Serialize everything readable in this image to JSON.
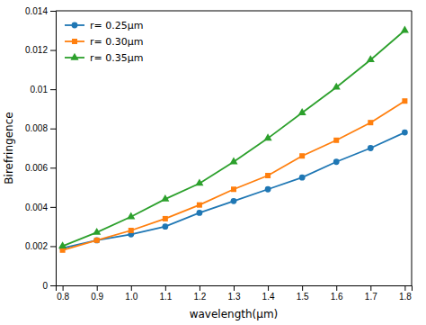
{
  "chart_data": {
    "type": "line",
    "xlabel": "wavelength(μm)",
    "ylabel": "Birefringence",
    "x": [
      0.8,
      0.9,
      1.0,
      1.1,
      1.2,
      1.3,
      1.4,
      1.5,
      1.6,
      1.7,
      1.8
    ],
    "series": [
      {
        "name": "r= 0.25μm",
        "marker": "circle",
        "values": [
          0.0019,
          0.0023,
          0.0026,
          0.003,
          0.0037,
          0.0043,
          0.0049,
          0.0055,
          0.0063,
          0.007,
          0.0078
        ]
      },
      {
        "name": "r= 0.30μm",
        "marker": "square",
        "values": [
          0.0018,
          0.0023,
          0.0028,
          0.0034,
          0.0041,
          0.0049,
          0.0056,
          0.0066,
          0.0074,
          0.0083,
          0.0094
        ]
      },
      {
        "name": "r= 0.35μm",
        "marker": "triangle",
        "values": [
          0.002,
          0.0027,
          0.0035,
          0.0044,
          0.0052,
          0.0063,
          0.0075,
          0.0088,
          0.0101,
          0.0115,
          0.013
        ]
      }
    ],
    "xlim": [
      0.78,
      1.82
    ],
    "ylim": [
      0,
      0.014
    ],
    "xticks": [
      0.8,
      0.9,
      {
        "value": 1.0,
        "label": "1.0"
      },
      1.1,
      1.2,
      1.3,
      1.4,
      1.5,
      1.6,
      1.7,
      1.8
    ],
    "yticks": [
      0,
      0.002,
      0.004,
      0.006,
      0.008,
      0.01,
      0.012,
      0.014
    ],
    "grid": false,
    "legend": "upper left"
  }
}
